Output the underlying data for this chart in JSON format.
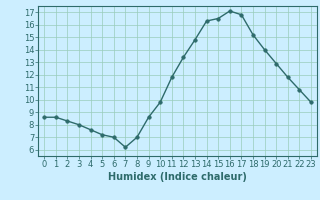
{
  "x": [
    0,
    1,
    2,
    3,
    4,
    5,
    6,
    7,
    8,
    9,
    10,
    11,
    12,
    13,
    14,
    15,
    16,
    17,
    18,
    19,
    20,
    21,
    22,
    23
  ],
  "y": [
    8.6,
    8.6,
    8.3,
    8.0,
    7.6,
    7.2,
    7.0,
    6.2,
    7.0,
    8.6,
    9.8,
    11.8,
    13.4,
    14.8,
    16.3,
    16.5,
    17.1,
    16.8,
    15.2,
    14.0,
    12.9,
    11.8,
    10.8,
    9.8
  ],
  "xlabel": "Humidex (Indice chaleur)",
  "xlim": [
    -0.5,
    23.5
  ],
  "ylim": [
    5.5,
    17.5
  ],
  "yticks": [
    6,
    7,
    8,
    9,
    10,
    11,
    12,
    13,
    14,
    15,
    16,
    17
  ],
  "xticks": [
    0,
    1,
    2,
    3,
    4,
    5,
    6,
    7,
    8,
    9,
    10,
    11,
    12,
    13,
    14,
    15,
    16,
    17,
    18,
    19,
    20,
    21,
    22,
    23
  ],
  "line_color": "#2e6b6b",
  "marker_size": 2.5,
  "bg_color": "#cceeff",
  "grid_color": "#99ccbb",
  "tick_label_color": "#2e6b6b",
  "xlabel_color": "#2e6b6b",
  "xlabel_fontsize": 7,
  "tick_fontsize": 6,
  "line_width": 1.0
}
